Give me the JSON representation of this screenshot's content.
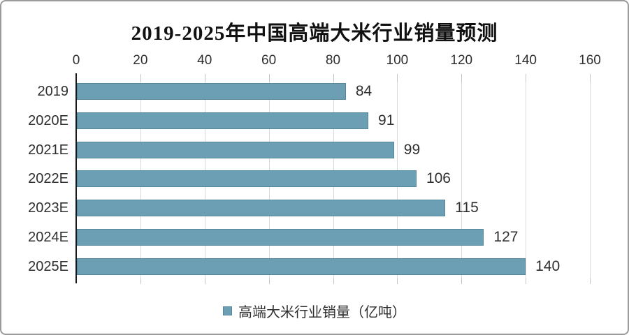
{
  "chart_data": {
    "type": "bar",
    "orientation": "horizontal",
    "title": "2019-2025年中国高端大米行业销量预测",
    "categories": [
      "2019",
      "2020E",
      "2021E",
      "2022E",
      "2023E",
      "2024E",
      "2025E"
    ],
    "series": [
      {
        "name": "高端大米行业销量（亿吨）",
        "values": [
          84,
          91,
          99,
          106,
          115,
          127,
          140
        ]
      }
    ],
    "value_labels": [
      "84",
      "91",
      "99",
      "106",
      "115",
      "127",
      "140"
    ],
    "x_ticks": [
      "0",
      "20",
      "40",
      "60",
      "80",
      "100",
      "120",
      "140",
      "160"
    ],
    "xlim": [
      0,
      160
    ],
    "grid": true,
    "legend_position": "bottom",
    "legend_label": "高端大米行业销量（亿吨）",
    "colors": {
      "bar": "#6C9FB4",
      "bar_border": "#55879E",
      "grid": "#d9d9d9",
      "axis": "#1a1a1a",
      "text": "#2f2f2f",
      "card_border": "#9a9a9a"
    }
  }
}
